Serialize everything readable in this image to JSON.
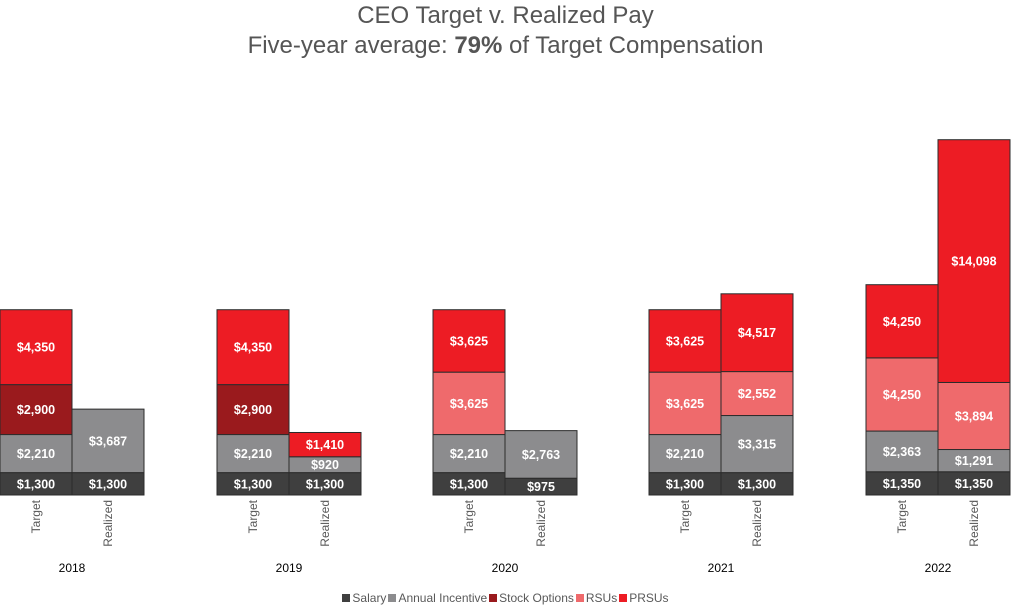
{
  "chart_data": {
    "type": "bar",
    "stacked": true,
    "title": "CEO Target v. Realized Pay",
    "subtitle_prefix": "Five-year average: ",
    "subtitle_bold": "79%",
    "subtitle_suffix": " of Target Compensation",
    "groups": [
      "2018",
      "2019",
      "2020",
      "2021",
      "2022"
    ],
    "bar_labels": [
      "Target",
      "Realized"
    ],
    "series": [
      {
        "name": "Salary",
        "color": "#3f3f3f",
        "values": [
          [
            1300,
            1300
          ],
          [
            1300,
            1300
          ],
          [
            1300,
            975
          ],
          [
            1300,
            1300
          ],
          [
            1350,
            1350
          ]
        ]
      },
      {
        "name": "Annual Incentive",
        "color": "#8c8c8e",
        "values": [
          [
            2210,
            3687
          ],
          [
            2210,
            920
          ],
          [
            2210,
            2763
          ],
          [
            2210,
            3315
          ],
          [
            2363,
            1291
          ]
        ]
      },
      {
        "name": "Stock Options",
        "color": "#9a1a1d",
        "values": [
          [
            2900,
            0
          ],
          [
            2900,
            0
          ],
          [
            0,
            0
          ],
          [
            0,
            0
          ],
          [
            0,
            0
          ]
        ]
      },
      {
        "name": "RSUs",
        "color": "#ef6a6c",
        "values": [
          [
            0,
            0
          ],
          [
            0,
            0
          ],
          [
            3625,
            0
          ],
          [
            3625,
            2552
          ],
          [
            4250,
            3894
          ]
        ]
      },
      {
        "name": "PRSUs",
        "color": "#ed1c24",
        "values": [
          [
            4350,
            0
          ],
          [
            4350,
            1410
          ],
          [
            3625,
            0
          ],
          [
            3625,
            4517
          ],
          [
            4250,
            14098
          ]
        ]
      }
    ],
    "value_format": "$#,###",
    "ylim": [
      0,
      25000
    ],
    "grid": false,
    "legend_position": "bottom"
  }
}
